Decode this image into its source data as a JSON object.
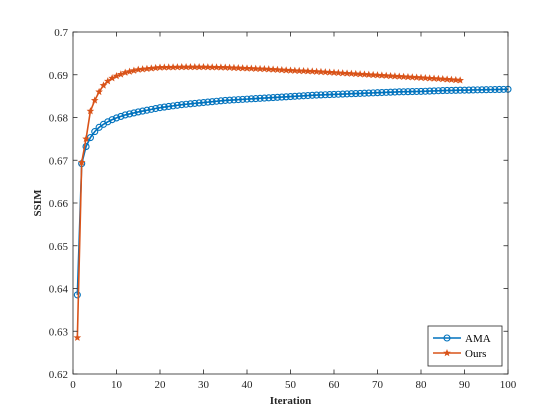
{
  "chart_data": {
    "type": "line",
    "title": "",
    "xlabel": "Iteration",
    "ylabel": "SSIM",
    "xlim": [
      0,
      100
    ],
    "ylim": [
      0.62,
      0.7
    ],
    "xticks": [
      0,
      10,
      20,
      30,
      40,
      50,
      60,
      70,
      80,
      90,
      100
    ],
    "yticks": [
      0.62,
      0.63,
      0.64,
      0.65,
      0.66,
      0.67,
      0.68,
      0.69,
      0.7
    ],
    "xtick_labels": [
      "0",
      "10",
      "20",
      "30",
      "40",
      "50",
      "60",
      "70",
      "80",
      "90",
      "100"
    ],
    "ytick_labels": [
      "0.62",
      "0.63",
      "0.64",
      "0.65",
      "0.66",
      "0.67",
      "0.68",
      "0.69",
      "0.7"
    ],
    "grid": false,
    "legend_position": "bottom-right",
    "series": [
      {
        "name": "AMA",
        "color": "#0072BD",
        "marker": "circle",
        "x": [
          1,
          2,
          3,
          4,
          5,
          6,
          7,
          8,
          9,
          10,
          12,
          15,
          20,
          25,
          30,
          35,
          40,
          45,
          50,
          55,
          60,
          65,
          70,
          75,
          80,
          85,
          90,
          95,
          100
        ],
        "y": [
          0.6385,
          0.6692,
          0.6732,
          0.6753,
          0.6767,
          0.6777,
          0.6784,
          0.679,
          0.6795,
          0.6799,
          0.6806,
          0.6813,
          0.6823,
          0.683,
          0.6835,
          0.684,
          0.6843,
          0.6846,
          0.6849,
          0.6852,
          0.6854,
          0.6856,
          0.6858,
          0.686,
          0.6861,
          0.6863,
          0.6864,
          0.6865,
          0.6866
        ]
      },
      {
        "name": "Ours",
        "color": "#D95319",
        "marker": "star",
        "x": [
          1,
          2,
          3,
          4,
          5,
          6,
          7,
          8,
          9,
          10,
          12,
          15,
          20,
          25,
          30,
          35,
          40,
          45,
          50,
          55,
          60,
          65,
          70,
          75,
          80,
          85,
          89
        ],
        "y": [
          0.6285,
          0.6695,
          0.675,
          0.6815,
          0.684,
          0.686,
          0.6875,
          0.6885,
          0.6892,
          0.6897,
          0.6905,
          0.6912,
          0.6917,
          0.6918,
          0.6918,
          0.6917,
          0.6915,
          0.6913,
          0.691,
          0.6908,
          0.6905,
          0.6902,
          0.6899,
          0.6896,
          0.6893,
          0.689,
          0.6887
        ]
      }
    ]
  }
}
